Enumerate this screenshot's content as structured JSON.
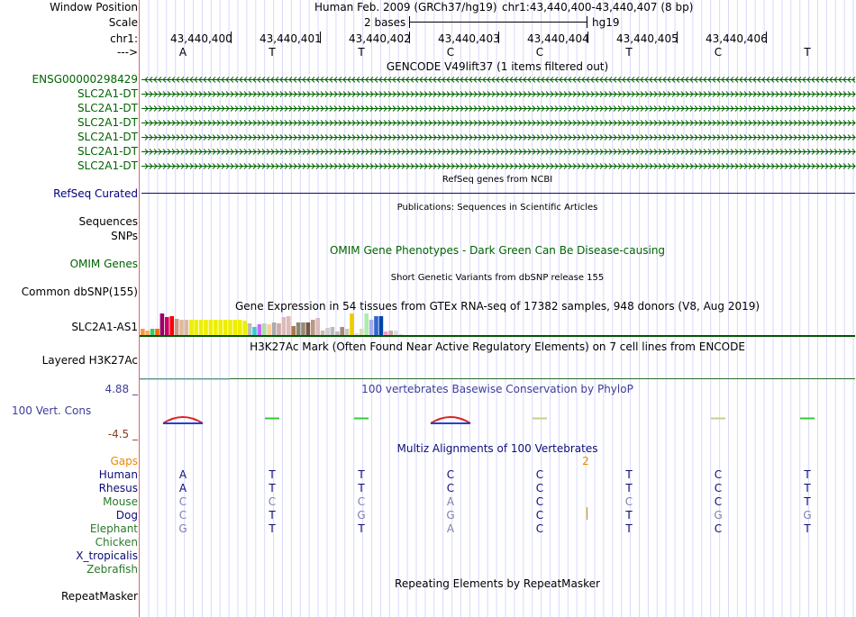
{
  "header": {
    "window_position_label": "Window Position",
    "scale_label": "Scale",
    "chrom_label": "chr1:",
    "strand_label": "--->",
    "assembly": "Human Feb. 2009 (GRCh37/hg19)",
    "position": "chr1:43,440,400-43,440,407 (8 bp)",
    "scale_text": "2 bases",
    "scale_db": "hg19",
    "coordinates": [
      "43,440,400",
      "43,440,401",
      "43,440,402",
      "43,440,403",
      "43,440,404",
      "43,440,405",
      "43,440,406"
    ],
    "bases": [
      "A",
      "T",
      "T",
      "C",
      "C",
      "T",
      "C",
      "T"
    ]
  },
  "gencode": {
    "title": "GENCODE V49lift37 (1 items filtered out)",
    "items": [
      {
        "label": "ENSG00000298429",
        "strand": "-"
      },
      {
        "label": "SLC2A1-DT",
        "strand": "+"
      },
      {
        "label": "SLC2A1-DT",
        "strand": "+"
      },
      {
        "label": "SLC2A1-DT",
        "strand": "+"
      },
      {
        "label": "SLC2A1-DT",
        "strand": "+"
      },
      {
        "label": "SLC2A1-DT",
        "strand": "+"
      },
      {
        "label": "SLC2A1-DT",
        "strand": "+"
      }
    ]
  },
  "refseq": {
    "label": "RefSeq Curated",
    "title": "RefSeq genes from NCBI"
  },
  "publications": {
    "label": "Sequences",
    "title": "Publications: Sequences in Scientific Articles"
  },
  "snps": {
    "label": "SNPs"
  },
  "omim": {
    "label": "OMIM Genes",
    "title": "OMIM Gene Phenotypes - Dark Green Can Be Disease-causing"
  },
  "dbsnp": {
    "label": "Common dbSNP(155)",
    "title": "Short Genetic Variants from dbSNP release 155"
  },
  "gtex": {
    "label": "SLC2A1-AS1",
    "title": "Gene Expression in 54 tissues from GTEx RNA-seq of 17382 samples, 948 donors (V8, Aug 2019)",
    "bars": [
      {
        "v": 0.28,
        "c": "#ff9933"
      },
      {
        "v": 0.22,
        "c": "#ffaa55"
      },
      {
        "v": 0.28,
        "c": "#33cc66"
      },
      {
        "v": 0.3,
        "c": "#ff6600"
      },
      {
        "v": 1.0,
        "c": "#990066"
      },
      {
        "v": 0.82,
        "c": "#cc0066"
      },
      {
        "v": 0.86,
        "c": "#ff0000"
      },
      {
        "v": 0.74,
        "c": "#cc9988"
      },
      {
        "v": 0.7,
        "c": "#ddbb99"
      },
      {
        "v": 0.7,
        "c": "#ddbb99"
      },
      {
        "v": 0.7,
        "c": "#eeee00"
      },
      {
        "v": 0.7,
        "c": "#eeee00"
      },
      {
        "v": 0.7,
        "c": "#eeee00"
      },
      {
        "v": 0.7,
        "c": "#eeee00"
      },
      {
        "v": 0.7,
        "c": "#eeee00"
      },
      {
        "v": 0.7,
        "c": "#eeee00"
      },
      {
        "v": 0.7,
        "c": "#eeee00"
      },
      {
        "v": 0.7,
        "c": "#eeee00"
      },
      {
        "v": 0.7,
        "c": "#eeee00"
      },
      {
        "v": 0.7,
        "c": "#eeee00"
      },
      {
        "v": 0.7,
        "c": "#eeee00"
      },
      {
        "v": 0.66,
        "c": "#eeee00"
      },
      {
        "v": 0.54,
        "c": "#bbbbbb"
      },
      {
        "v": 0.36,
        "c": "#33cccc"
      },
      {
        "v": 0.48,
        "c": "#cc66ff"
      },
      {
        "v": 0.56,
        "c": "#aaddaa"
      },
      {
        "v": 0.48,
        "c": "#ffcc99"
      },
      {
        "v": 0.6,
        "c": "#aaaaaa"
      },
      {
        "v": 0.54,
        "c": "#ccaaaa"
      },
      {
        "v": 0.84,
        "c": "#ddbbbb"
      },
      {
        "v": 0.86,
        "c": "#ddbbbb"
      },
      {
        "v": 0.4,
        "c": "#aa7755"
      },
      {
        "v": 0.58,
        "c": "#888866"
      },
      {
        "v": 0.58,
        "c": "#998877"
      },
      {
        "v": 0.58,
        "c": "#775544"
      },
      {
        "v": 0.72,
        "c": "#bb9988"
      },
      {
        "v": 0.8,
        "c": "#ddbbbb"
      },
      {
        "v": 0.2,
        "c": "#ccbbaa"
      },
      {
        "v": 0.32,
        "c": "#cccccc"
      },
      {
        "v": 0.36,
        "c": "#bbbbbb"
      },
      {
        "v": 0.16,
        "c": "#bbbbbb"
      },
      {
        "v": 0.36,
        "c": "#aa8877"
      },
      {
        "v": 0.3,
        "c": "#ccccaa"
      },
      {
        "v": 1.0,
        "c": "#eecc00"
      },
      {
        "v": 0.1,
        "c": "#dddddd"
      },
      {
        "v": 0.3,
        "c": "#ddddbb"
      },
      {
        "v": 1.0,
        "c": "#aaeeaa"
      },
      {
        "v": 0.72,
        "c": "#aaaaee"
      },
      {
        "v": 0.86,
        "c": "#3366cc"
      },
      {
        "v": 0.86,
        "c": "#0044aa"
      },
      {
        "v": 0.16,
        "c": "#ff99cc"
      },
      {
        "v": 0.2,
        "c": "#ccaaaa"
      },
      {
        "v": 0.2,
        "c": "#dddddd"
      },
      {
        "v": 0.06,
        "c": "#dddddd"
      }
    ]
  },
  "h3k27ac": {
    "label": "Layered H3K27Ac",
    "title": "H3K27Ac Mark (Often Found Near Active Regulatory Elements) on 7 cell lines from ENCODE"
  },
  "phylop": {
    "label": "100 Vert. Cons",
    "max_label": "4.88 _",
    "min_label": "-4.5 _",
    "title": "100 vertebrates Basewise Conservation by PhyloP"
  },
  "multiz": {
    "title": "Multiz Alignments of 100 Vertebrates",
    "gaps_label": "Gaps",
    "gap_count": "2",
    "species": [
      {
        "name": "Human",
        "bases": [
          "A",
          "T",
          "T",
          "C",
          "C",
          "T",
          "C",
          "T"
        ]
      },
      {
        "name": "Rhesus",
        "bases": [
          "A",
          "T",
          "T",
          "C",
          "C",
          "T",
          "C",
          "T"
        ]
      },
      {
        "name": "Mouse",
        "bases": [
          "C",
          "C",
          "C",
          "A",
          "C",
          "C",
          "C",
          "T"
        ]
      },
      {
        "name": "Dog",
        "bases": [
          "C",
          "T",
          "G",
          "G",
          "C",
          "T",
          "G",
          "G"
        ]
      },
      {
        "name": "Elephant",
        "bases": [
          "G",
          "T",
          "T",
          "A",
          "C",
          "T",
          "C",
          "T"
        ]
      },
      {
        "name": "Chicken",
        "bases": []
      },
      {
        "name": "X_tropicalis",
        "bases": []
      },
      {
        "name": "Zebrafish",
        "bases": []
      }
    ]
  },
  "repeatmasker": {
    "label": "RepeatMasker",
    "title": "Repeating Elements by RepeatMasker"
  },
  "colors": {
    "gencode": "#006400",
    "refseq": "#0c0c78",
    "omim": "#006400",
    "phylop": "#3c3c9c",
    "phylop_min": "#8b3a1a",
    "gaps": "#e88a00",
    "species_match": "#0c0c78",
    "species_mismatch": "#8080b0",
    "species_green": "#2a7a2a",
    "divider": "#e06666",
    "grid": "#d8d8ff"
  }
}
